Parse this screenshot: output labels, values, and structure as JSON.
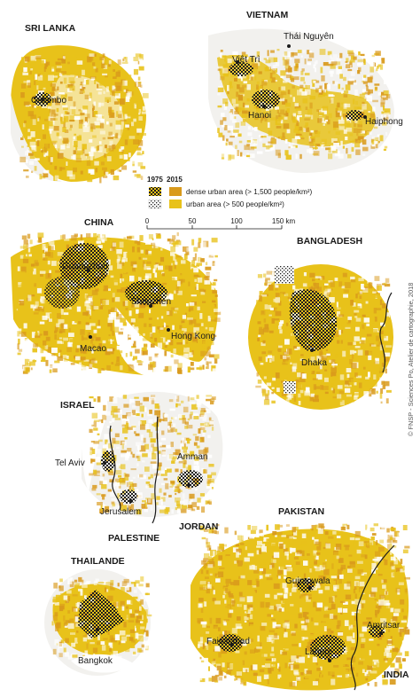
{
  "colors": {
    "urban": "#e8c21a",
    "dense": "#d99a1c",
    "circle": "#f2f1ee",
    "border": "#1a1a1a",
    "dots": "#1c1c1c"
  },
  "regions": [
    {
      "id": "sri-lanka",
      "country": "SRI LANKA",
      "cities": [
        "Colombo"
      ]
    },
    {
      "id": "vietnam",
      "country": "VIETNAM",
      "cities": [
        "Thái Nguyên",
        "Việt Trì",
        "Hanoi",
        "Haiphong"
      ]
    },
    {
      "id": "china",
      "country": "CHINA",
      "cities": [
        "Guangzhou",
        "Shenzhen",
        "Macao",
        "Hong Kong"
      ]
    },
    {
      "id": "bangladesh",
      "country": "BANGLADESH",
      "cities": [
        "Dhaka"
      ]
    },
    {
      "id": "israel",
      "countries": [
        "ISRAEL",
        "PALESTINE",
        "JORDAN"
      ],
      "cities": [
        "Tel Aviv",
        "Jerusalem",
        "Amman"
      ]
    },
    {
      "id": "thailand",
      "country": "THAILANDE",
      "cities": [
        "Bangkok"
      ]
    },
    {
      "id": "pakistan",
      "countries": [
        "PAKISTAN",
        "INDIA"
      ],
      "cities": [
        "Gujranwala",
        "Amritsar",
        "Faisalabad",
        "Lahore"
      ]
    }
  ],
  "legend": {
    "year_1975": "1975",
    "year_2015": "2015",
    "dense_label": "dense urban area (> 1,500 people/km²)",
    "urban_label": "urban area (> 500 people/km²)",
    "scale_ticks": [
      "0",
      "50",
      "100",
      "150 km"
    ]
  },
  "credit": "© FNSP - Sciences Po, Atelier de cartographie, 2018"
}
